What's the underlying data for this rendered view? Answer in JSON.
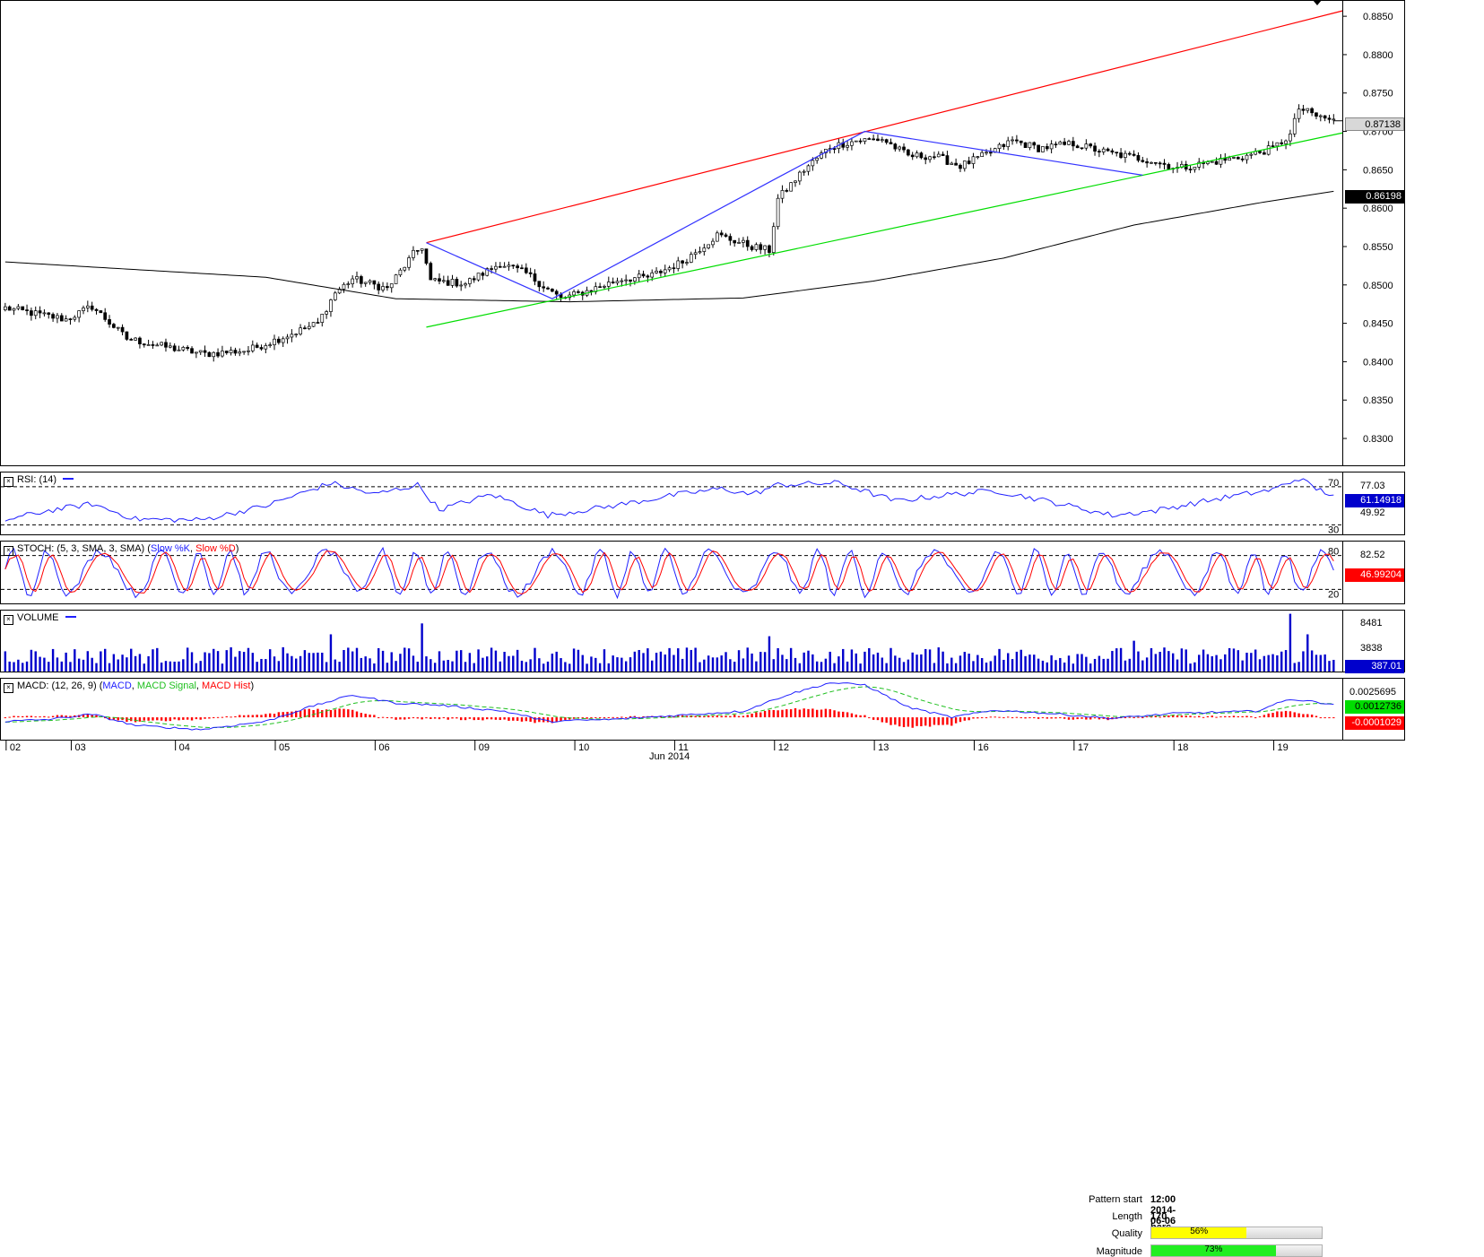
{
  "chart_data": [
    {
      "type": "candlestick",
      "panel": "price",
      "y_ticks": [
        "0.8850",
        "0.8800",
        "0.8750",
        "0.8700",
        "0.8650",
        "0.8600",
        "0.8550",
        "0.8500",
        "0.8450",
        "0.8400",
        "0.8350",
        "0.8300"
      ],
      "ylim": [
        0.8265,
        0.887
      ],
      "price_anchors": [
        {
          "bar": 0,
          "price": 0.847
        },
        {
          "bar": 14,
          "price": 0.8455
        },
        {
          "bar": 20,
          "price": 0.8472
        },
        {
          "bar": 28,
          "price": 0.843
        },
        {
          "bar": 38,
          "price": 0.8418
        },
        {
          "bar": 46,
          "price": 0.841
        },
        {
          "bar": 56,
          "price": 0.8415
        },
        {
          "bar": 64,
          "price": 0.8432
        },
        {
          "bar": 72,
          "price": 0.845
        },
        {
          "bar": 76,
          "price": 0.849
        },
        {
          "bar": 80,
          "price": 0.8508
        },
        {
          "bar": 88,
          "price": 0.8495
        },
        {
          "bar": 94,
          "price": 0.854
        },
        {
          "bar": 96,
          "price": 0.855
        },
        {
          "bar": 98,
          "price": 0.8505
        },
        {
          "bar": 106,
          "price": 0.8502
        },
        {
          "bar": 114,
          "price": 0.8528
        },
        {
          "bar": 120,
          "price": 0.8515
        },
        {
          "bar": 128,
          "price": 0.8482
        },
        {
          "bar": 134,
          "price": 0.8492
        },
        {
          "bar": 142,
          "price": 0.8508
        },
        {
          "bar": 148,
          "price": 0.851
        },
        {
          "bar": 156,
          "price": 0.853
        },
        {
          "bar": 164,
          "price": 0.8565
        },
        {
          "bar": 172,
          "price": 0.855
        },
        {
          "bar": 176,
          "price": 0.8545
        },
        {
          "bar": 178,
          "price": 0.8612
        },
        {
          "bar": 184,
          "price": 0.865
        },
        {
          "bar": 190,
          "price": 0.868
        },
        {
          "bar": 196,
          "price": 0.8688
        },
        {
          "bar": 202,
          "price": 0.869
        },
        {
          "bar": 208,
          "price": 0.8668
        },
        {
          "bar": 214,
          "price": 0.8668
        },
        {
          "bar": 220,
          "price": 0.8655
        },
        {
          "bar": 226,
          "price": 0.867
        },
        {
          "bar": 232,
          "price": 0.8688
        },
        {
          "bar": 238,
          "price": 0.8678
        },
        {
          "bar": 246,
          "price": 0.8684
        },
        {
          "bar": 254,
          "price": 0.8672
        },
        {
          "bar": 264,
          "price": 0.8662
        },
        {
          "bar": 270,
          "price": 0.8652
        },
        {
          "bar": 278,
          "price": 0.866
        },
        {
          "bar": 286,
          "price": 0.8668
        },
        {
          "bar": 292,
          "price": 0.8678
        },
        {
          "bar": 296,
          "price": 0.8695
        },
        {
          "bar": 298,
          "price": 0.873
        },
        {
          "bar": 302,
          "price": 0.872
        },
        {
          "bar": 306,
          "price": 0.8714
        }
      ],
      "bars": 307,
      "moving_average": [
        {
          "bar": 0,
          "price": 0.853
        },
        {
          "bar": 60,
          "price": 0.851
        },
        {
          "bar": 90,
          "price": 0.8482
        },
        {
          "bar": 130,
          "price": 0.8478
        },
        {
          "bar": 170,
          "price": 0.8483
        },
        {
          "bar": 200,
          "price": 0.8505
        },
        {
          "bar": 230,
          "price": 0.8535
        },
        {
          "bar": 260,
          "price": 0.8578
        },
        {
          "bar": 290,
          "price": 0.8608
        },
        {
          "bar": 306,
          "price": 0.8622
        }
      ],
      "resistance_line": {
        "start": {
          "bar": 97,
          "price": 0.8555
        },
        "end": {
          "bar": 306,
          "price": 0.8857
        }
      },
      "support_line": {
        "start": {
          "bar": 97,
          "price": 0.8445
        },
        "end": {
          "bar": 306,
          "price": 0.8698
        }
      },
      "pattern_zigzag": [
        {
          "bar": 97,
          "price": 0.8555
        },
        {
          "bar": 126,
          "price": 0.8482
        },
        {
          "bar": 178,
          "price": 0.864
        },
        {
          "bar": 198,
          "price": 0.87
        },
        {
          "bar": 262,
          "price": 0.8643
        }
      ],
      "last_price": "0.87138",
      "ma_value": "0.86198",
      "x_ticks": [
        "02",
        "03",
        "04",
        "05",
        "06",
        "09",
        "10",
        "11",
        "12",
        "13",
        "16",
        "17",
        "18",
        "19"
      ],
      "x_tick_bars": [
        0,
        15,
        39,
        62,
        85,
        108,
        131,
        154,
        177,
        200,
        223,
        246,
        269,
        292
      ],
      "x_label": "Jun 2014"
    },
    {
      "type": "line",
      "panel": "rsi",
      "title": "RSI: (14)",
      "ylim": [
        20,
        85
      ],
      "levels": [
        "70",
        "30"
      ],
      "y_ticks": [
        "77.03",
        "49.92"
      ],
      "last_value": "61.14918",
      "anchors": [
        {
          "bar": 0,
          "value": 35
        },
        {
          "bar": 10,
          "value": 45
        },
        {
          "bar": 20,
          "value": 52
        },
        {
          "bar": 30,
          "value": 36
        },
        {
          "bar": 45,
          "value": 35
        },
        {
          "bar": 60,
          "value": 50
        },
        {
          "bar": 75,
          "value": 74
        },
        {
          "bar": 85,
          "value": 62
        },
        {
          "bar": 95,
          "value": 72
        },
        {
          "bar": 100,
          "value": 46
        },
        {
          "bar": 112,
          "value": 62
        },
        {
          "bar": 125,
          "value": 40
        },
        {
          "bar": 140,
          "value": 50
        },
        {
          "bar": 155,
          "value": 62
        },
        {
          "bar": 165,
          "value": 68
        },
        {
          "bar": 172,
          "value": 62
        },
        {
          "bar": 178,
          "value": 72
        },
        {
          "bar": 192,
          "value": 74
        },
        {
          "bar": 205,
          "value": 55
        },
        {
          "bar": 218,
          "value": 62
        },
        {
          "bar": 228,
          "value": 66
        },
        {
          "bar": 240,
          "value": 55
        },
        {
          "bar": 255,
          "value": 40
        },
        {
          "bar": 265,
          "value": 45
        },
        {
          "bar": 280,
          "value": 58
        },
        {
          "bar": 292,
          "value": 67
        },
        {
          "bar": 298,
          "value": 79
        },
        {
          "bar": 302,
          "value": 68
        },
        {
          "bar": 306,
          "value": 61
        }
      ]
    },
    {
      "type": "line",
      "panel": "stoch",
      "title": "STOCH: (5, 3, SMA, 3, SMA)",
      "series": [
        {
          "name": "Slow %K",
          "color": "#2020ff"
        },
        {
          "name": "Slow %D",
          "color": "#ff0000"
        }
      ],
      "ylim": [
        0,
        100
      ],
      "levels": [
        "80",
        "20"
      ],
      "y_ticks": [
        "82.52"
      ],
      "last_value": "46.99204"
    },
    {
      "type": "bar",
      "panel": "volume",
      "title": "VOLUME",
      "ylim": [
        0,
        9500
      ],
      "y_ticks": [
        "8481",
        "3838"
      ],
      "last_value": "387.01",
      "spikes": [
        {
          "bar": 96,
          "value": 7500
        },
        {
          "bar": 75,
          "value": 5800
        },
        {
          "bar": 176,
          "value": 5500
        },
        {
          "bar": 260,
          "value": 4800
        },
        {
          "bar": 296,
          "value": 9000
        },
        {
          "bar": 300,
          "value": 5800
        }
      ]
    },
    {
      "type": "line",
      "panel": "macd",
      "title": "MACD: (12, 26, 9)",
      "series": [
        {
          "name": "MACD",
          "color": "#2020ff"
        },
        {
          "name": "MACD Signal",
          "color": "#20c020"
        },
        {
          "name": "MACD Hist",
          "color": "#ff0000"
        }
      ],
      "ylim": [
        -0.0022,
        0.0038
      ],
      "y_ticks": [
        "0.0025695"
      ],
      "last_value": "0.0012736",
      "hist_last": "-0.0001029",
      "anchors": [
        {
          "bar": 0,
          "value": -0.0004
        },
        {
          "bar": 10,
          "value": -0.0002
        },
        {
          "bar": 20,
          "value": 0.0003
        },
        {
          "bar": 30,
          "value": -0.0008
        },
        {
          "bar": 45,
          "value": -0.0012
        },
        {
          "bar": 60,
          "value": -0.0004
        },
        {
          "bar": 70,
          "value": 0.001
        },
        {
          "bar": 80,
          "value": 0.0022
        },
        {
          "bar": 90,
          "value": 0.0014
        },
        {
          "bar": 100,
          "value": 0.0012
        },
        {
          "bar": 115,
          "value": 0.0006
        },
        {
          "bar": 125,
          "value": -0.0004
        },
        {
          "bar": 140,
          "value": -0.0002
        },
        {
          "bar": 155,
          "value": 0.0002
        },
        {
          "bar": 170,
          "value": 0.0006
        },
        {
          "bar": 180,
          "value": 0.0022
        },
        {
          "bar": 190,
          "value": 0.0034
        },
        {
          "bar": 198,
          "value": 0.0032
        },
        {
          "bar": 208,
          "value": 0.001
        },
        {
          "bar": 218,
          "value": 0.0
        },
        {
          "bar": 228,
          "value": 0.0007
        },
        {
          "bar": 240,
          "value": 0.0004
        },
        {
          "bar": 255,
          "value": -0.0001
        },
        {
          "bar": 270,
          "value": 0.0004
        },
        {
          "bar": 288,
          "value": 0.0006
        },
        {
          "bar": 296,
          "value": 0.0018
        },
        {
          "bar": 306,
          "value": 0.0013
        }
      ]
    }
  ],
  "pattern_info": {
    "start_label": "Pattern start",
    "start_value": "12:00 2014-06-06",
    "length_label": "Length",
    "length_value": "170 bars",
    "quality_label": "Quality",
    "quality_value": "56%",
    "quality_fraction": 0.56,
    "quality_color": "#ffff00",
    "magnitude_label": "Magnitude",
    "magnitude_value": "73%",
    "magnitude_fraction": 0.73,
    "magnitude_color": "#22ee22"
  },
  "panels": {
    "rsi_title": "RSI: (14)",
    "stoch_title_prefix": "STOCH: (5, 3, SMA, 3, SMA)",
    "stoch_k": "Slow %K",
    "stoch_d": "Slow %D",
    "volume_title": "VOLUME",
    "macd_title_prefix": "MACD: (12, 26, 9)",
    "macd_line": "MACD",
    "macd_signal": "MACD Signal",
    "macd_hist": "MACD Hist"
  },
  "colors": {
    "up": "#ffffff",
    "down": "#000000",
    "resistance": "#ff0000",
    "support": "#00dd00",
    "pattern": "#3333ff",
    "ma": "#000000"
  }
}
